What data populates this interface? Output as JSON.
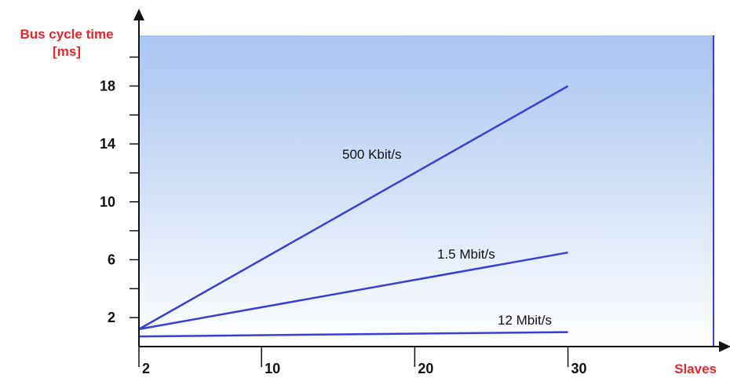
{
  "chart_data": {
    "type": "line",
    "ylabel_line1": "Bus cycle time",
    "ylabel_line2": "[ms]",
    "xlabel": "Slaves",
    "x_ticks": [
      2,
      10,
      20,
      30
    ],
    "y_ticks": [
      2,
      6,
      10,
      14,
      18
    ],
    "xlim": [
      2,
      39.5
    ],
    "ylim": [
      0,
      21.5
    ],
    "series": [
      {
        "name": "500 Kbit/s",
        "x": [
          2,
          30
        ],
        "y": [
          1.2,
          18
        ]
      },
      {
        "name": "1.5 Mbit/s",
        "x": [
          2,
          30
        ],
        "y": [
          1.2,
          6.5
        ]
      },
      {
        "name": "12 Mbit/s",
        "x": [
          2,
          30
        ],
        "y": [
          0.7,
          1.0
        ]
      }
    ],
    "line_color": "#3a3fd6",
    "bg_top_color": "#a9c5f2",
    "bg_bottom_color": "#ffffff",
    "axis_color": "#111111",
    "grid": false
  }
}
